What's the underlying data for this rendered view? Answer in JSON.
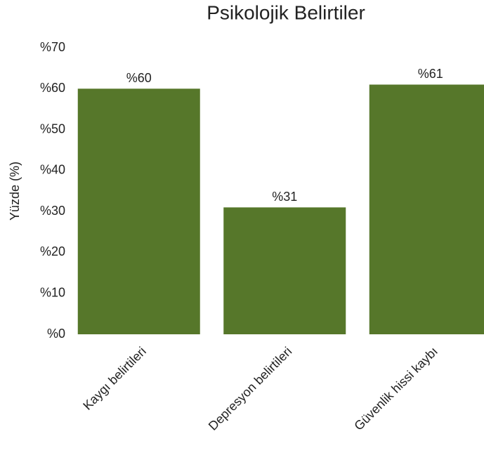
{
  "chart_data": {
    "type": "bar",
    "title": "Psikolojik Belirtiler",
    "ylabel": "Yüzde (%)",
    "categories": [
      "Kaygı belirtileri",
      "Depresyon belirtileri",
      "Güvenlik hissi kaybı"
    ],
    "values": [
      60,
      31,
      61
    ],
    "value_labels": [
      "%60",
      "%31",
      "%61"
    ],
    "color": "#56772a",
    "ylim": [
      0,
      70
    ],
    "yticks": [
      {
        "value": 0,
        "label": "%0"
      },
      {
        "value": 10,
        "label": "%10"
      },
      {
        "value": 20,
        "label": "%20"
      },
      {
        "value": 30,
        "label": "%30"
      },
      {
        "value": 40,
        "label": "%40"
      },
      {
        "value": 50,
        "label": "%50"
      },
      {
        "value": 60,
        "label": "%60"
      },
      {
        "value": 70,
        "label": "%70"
      }
    ],
    "grid": false
  }
}
